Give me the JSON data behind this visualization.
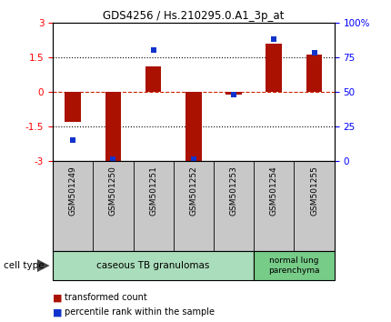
{
  "title": "GDS4256 / Hs.210295.0.A1_3p_at",
  "samples": [
    "GSM501249",
    "GSM501250",
    "GSM501251",
    "GSM501252",
    "GSM501253",
    "GSM501254",
    "GSM501255"
  ],
  "red_values": [
    -1.3,
    -3.0,
    1.1,
    -3.0,
    -0.12,
    2.1,
    1.6
  ],
  "blue_pct": [
    15,
    1,
    80,
    1,
    48,
    88,
    78
  ],
  "ylim_left": [
    -3,
    3
  ],
  "ylim_right": [
    0,
    100
  ],
  "left_ticks": [
    -3,
    -1.5,
    0,
    1.5,
    3
  ],
  "right_ticks": [
    0,
    25,
    50,
    75,
    100
  ],
  "right_tick_labels": [
    "0",
    "25",
    "50",
    "75",
    "100%"
  ],
  "bar_color": "#aa1100",
  "dot_color": "#1133cc",
  "group1_label": "caseous TB granulomas",
  "group2_label": "normal lung\nparenchyma",
  "group1_color": "#aaddbb",
  "group2_color": "#77cc88",
  "cell_type_label": "cell type",
  "legend_bar_label": "transformed count",
  "legend_dot_label": "percentile rank within the sample",
  "bg_color": "#ffffff",
  "plot_bg": "#ffffff",
  "tick_area_color": "#c8c8c8",
  "zero_line_color": "#cc2200",
  "dotted_color": "#000000",
  "n_group1": 5,
  "n_group2": 2
}
